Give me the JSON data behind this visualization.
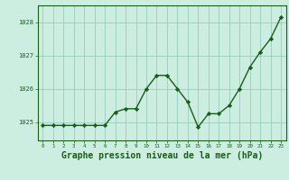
{
  "x": [
    0,
    1,
    2,
    3,
    4,
    5,
    6,
    7,
    8,
    9,
    10,
    11,
    12,
    13,
    14,
    15,
    16,
    17,
    18,
    19,
    20,
    21,
    22,
    23
  ],
  "y": [
    1024.9,
    1024.9,
    1024.9,
    1024.9,
    1024.9,
    1024.9,
    1024.9,
    1025.3,
    1025.4,
    1025.4,
    1026.0,
    1026.4,
    1026.4,
    1026.0,
    1025.6,
    1024.85,
    1025.25,
    1025.25,
    1025.5,
    1026.0,
    1026.65,
    1027.1,
    1027.5,
    1028.15
  ],
  "line_color": "#1a5c1a",
  "marker": "D",
  "marker_size": 2.2,
  "bg_color": "#cceee0",
  "grid_color": "#99ccbb",
  "axis_color": "#1a5c1a",
  "xlabel": "Graphe pression niveau de la mer (hPa)",
  "xlabel_fontsize": 7,
  "yticks": [
    1025,
    1026,
    1027,
    1028
  ],
  "xtick_labels": [
    "0",
    "1",
    "2",
    "3",
    "4",
    "5",
    "6",
    "7",
    "8",
    "9",
    "10",
    "11",
    "12",
    "13",
    "14",
    "15",
    "16",
    "17",
    "18",
    "19",
    "20",
    "21",
    "22",
    "23"
  ],
  "ylim": [
    1024.45,
    1028.5
  ],
  "xlim": [
    -0.5,
    23.5
  ]
}
